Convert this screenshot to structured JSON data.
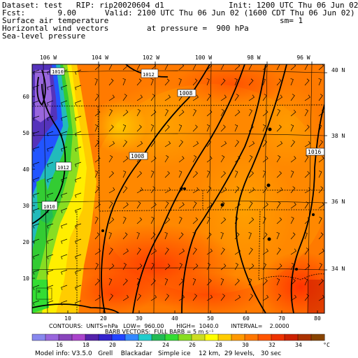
{
  "header": {
    "dataset_line": "Dataset: test   RIP: rip20020604 d1",
    "init_line": "Init: 1200 UTC Thu 06 Jun 02",
    "fcst_line": "Fcst:       9.00",
    "valid_line": "Valid: 2100 UTC Thu 06 Jun 02 (1600 CDT Thu 06 Jun 02)",
    "field1": "Surface air temperature",
    "sm_label": "sm= 1",
    "field2": "Horizontal wind vectors",
    "pressure_label": "at pressure =  900 hPa",
    "field3": "Sea-level pressure"
  },
  "map": {
    "lon_labels": [
      "106 W",
      "104 W",
      "102 W",
      "100 W",
      "98 W",
      "96 W"
    ],
    "lat_labels": [
      "40 N",
      "38 N",
      "36 N",
      "34 N"
    ],
    "x_ticks": [
      "10",
      "20",
      "30",
      "40",
      "50",
      "60",
      "70",
      "80"
    ],
    "y_ticks": [
      "10",
      "20",
      "30",
      "40",
      "50",
      "60"
    ],
    "isobar_labels": [
      "1008",
      "1008",
      "1016"
    ],
    "high_low_labels": [
      "1010",
      "1012",
      "1012",
      "1010"
    ],
    "contour_info": "CONTOURS:  UNITS=hPa   LOW=  960.00       HIGH=  1040.0       INTERVAL=    2.0000",
    "barb_info": "BARB VECTORS:  FULL BARB = 5 m s⁻¹"
  },
  "legend": {
    "ticks": [
      "16",
      "18",
      "20",
      "22",
      "24",
      "26",
      "28",
      "30",
      "32",
      "34"
    ],
    "unit": "°C",
    "colors": [
      "#8888ee",
      "#9966dd",
      "#8844bb",
      "#aa44cc",
      "#5522aa",
      "#3322cc",
      "#2244ff",
      "#3388ff",
      "#22cccc",
      "#22bb55",
      "#33dd33",
      "#88dd22",
      "#ccdd22",
      "#ffff00",
      "#ffcc00",
      "#ff9900",
      "#ff7700",
      "#ff5500",
      "#ee3300",
      "#cc2200",
      "#aa3300",
      "#884400"
    ]
  },
  "model_info": "Model info: V3.5.0   Grell    Blackadar   Simple ice    12 km,  29 levels,   30 sec"
}
